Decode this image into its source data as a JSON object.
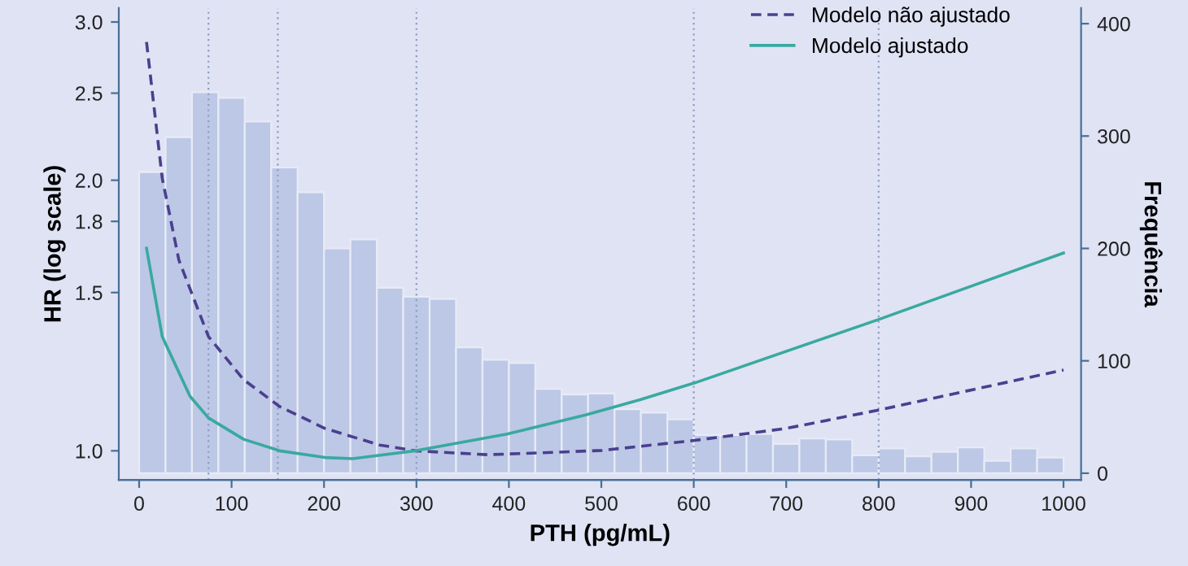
{
  "chart_data": {
    "type": "line",
    "xlabel": "PTH (pg/mL)",
    "ylabel": "HR (log scale)",
    "y2label": "Frequência",
    "log": "y",
    "grid": false,
    "legend": "top right",
    "marker": "none",
    "xlim": [
      -22,
      1019
    ],
    "xticks": [
      0,
      100,
      200,
      300,
      400,
      500,
      600,
      700,
      800,
      900,
      1000
    ],
    "ylim": [
      0.928,
      3.11
    ],
    "yticks": [
      {
        "value": 1.0,
        "label": "1.0"
      },
      1.5,
      1.8,
      {
        "value": 2.0,
        "label": "2.0"
      },
      2.5,
      {
        "value": 3.0,
        "label": "3.0"
      }
    ],
    "y2lim": [
      -6,
      414
    ],
    "y2ticks": [
      0,
      100,
      200,
      300,
      400
    ],
    "ref_lines": [
      {
        "axis": "x",
        "value": 75,
        "color": "#8f9cc4",
        "line_style": "dotted"
      },
      {
        "axis": "x",
        "value": 150,
        "color": "#8f9cc4",
        "line_style": "dotted"
      },
      {
        "axis": "x",
        "value": 300,
        "color": "#8f9cc4",
        "line_style": "dotted"
      },
      {
        "axis": "x",
        "value": 600,
        "color": "#8f9cc4",
        "line_style": "dotted"
      },
      {
        "axis": "x",
        "value": 800,
        "color": "#8f9cc4",
        "line_style": "dotted"
      }
    ],
    "series": [
      {
        "type": "histogram",
        "axis": "y2",
        "color": "#bcc8e6",
        "bins": [
          0,
          28.57,
          57.14,
          85.71,
          114.29,
          142.86,
          171.43,
          200,
          228.57,
          257.14,
          285.71,
          314.29,
          342.86,
          371.43,
          400,
          428.57,
          457.14,
          485.71,
          514.29,
          542.86,
          571.43,
          600,
          628.57,
          657.14,
          685.71,
          714.29,
          742.86,
          771.43,
          800,
          828.57,
          857.14,
          885.71,
          914.29,
          942.86,
          971.43,
          1000
        ],
        "values": [
          268,
          299,
          339,
          334,
          313,
          272,
          250,
          200,
          208,
          165,
          157,
          155,
          112,
          101,
          98,
          75,
          70,
          71,
          57,
          54,
          48,
          34,
          34,
          35,
          26,
          31,
          30,
          16,
          22,
          15,
          19,
          23,
          11,
          22,
          14
        ]
      },
      {
        "name": "Modelo não ajustado",
        "color": "#4b3f8f",
        "line_style": "dashed",
        "x": [
          8,
          25,
          43,
          75,
          113,
          152,
          201,
          260,
          299,
          377,
          436,
          501,
          601,
          700,
          800,
          1000
        ],
        "values": [
          2.85,
          2.01,
          1.63,
          1.34,
          1.2,
          1.12,
          1.059,
          1.015,
          1.0,
          0.99,
          0.995,
          1.001,
          1.027,
          1.059,
          1.11,
          1.23
        ]
      },
      {
        "name": "Modelo ajustado",
        "color": "#3aa9a0",
        "line_style": "solid",
        "x": [
          8,
          25,
          55,
          75,
          113,
          152,
          201,
          231,
          299,
          398,
          483,
          542,
          601,
          800,
          1000
        ],
        "values": [
          1.68,
          1.34,
          1.15,
          1.088,
          1.03,
          1.0,
          0.983,
          0.98,
          1.0,
          1.044,
          1.096,
          1.14,
          1.19,
          1.4,
          1.66
        ]
      }
    ]
  }
}
